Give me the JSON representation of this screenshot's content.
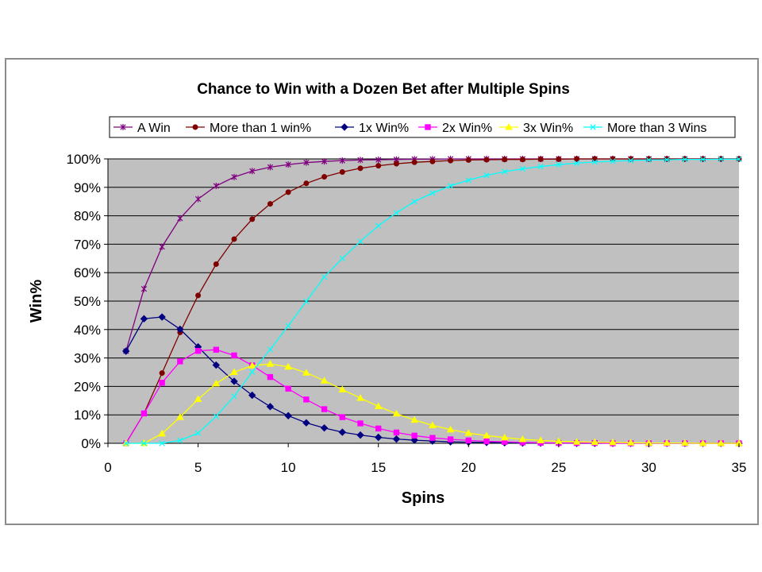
{
  "chart_data": {
    "type": "line",
    "title": "Chance to Win with a Dozen Bet after Multiple Spins",
    "xlabel": "Spins",
    "ylabel": "Win%",
    "xlim": [
      0,
      35
    ],
    "ylim": [
      0,
      100
    ],
    "x_ticks": [
      "0",
      "5",
      "10",
      "15",
      "20",
      "25",
      "30",
      "35"
    ],
    "y_ticks": [
      "0%",
      "10%",
      "20%",
      "30%",
      "40%",
      "50%",
      "60%",
      "70%",
      "80%",
      "90%",
      "100%"
    ],
    "grid": true,
    "legend_position": "top",
    "plot_background": "#c0c0c0",
    "x": [
      1,
      2,
      3,
      4,
      5,
      6,
      7,
      8,
      9,
      10,
      11,
      12,
      13,
      14,
      15,
      16,
      17,
      18,
      19,
      20,
      21,
      22,
      23,
      24,
      25,
      26,
      27,
      28,
      29,
      30,
      31,
      32,
      33,
      34,
      35
    ],
    "series": [
      {
        "name": "A Win",
        "color": "#800080",
        "marker": "star",
        "values": [
          32.4,
          54.3,
          69.1,
          79.1,
          85.9,
          90.5,
          93.6,
          95.7,
          97.1,
          98.0,
          98.7,
          99.1,
          99.4,
          99.6,
          99.7,
          99.8,
          99.9,
          99.9,
          100,
          100,
          100,
          100,
          100,
          100,
          100,
          100,
          100,
          100,
          100,
          100,
          100,
          100,
          100,
          100,
          100
        ]
      },
      {
        "name": "More than 1 win%",
        "color": "#800000",
        "marker": "circle",
        "values": [
          0,
          10.5,
          24.7,
          39.0,
          52.0,
          63.0,
          71.8,
          78.8,
          84.2,
          88.3,
          91.4,
          93.7,
          95.4,
          96.7,
          97.6,
          98.3,
          98.8,
          99.1,
          99.4,
          99.6,
          99.7,
          99.8,
          99.8,
          99.9,
          99.9,
          100,
          100,
          100,
          100,
          100,
          100,
          100,
          100,
          100,
          100
        ]
      },
      {
        "name": "1x Win%",
        "color": "#000080",
        "marker": "diamond",
        "values": [
          32.4,
          43.8,
          44.4,
          40.1,
          33.9,
          27.5,
          21.8,
          16.9,
          12.9,
          9.7,
          7.2,
          5.4,
          3.9,
          2.9,
          2.1,
          1.5,
          1.1,
          0.8,
          0.5,
          0.4,
          0.3,
          0.2,
          0.1,
          0.1,
          0.1,
          0,
          0,
          0,
          0,
          0,
          0,
          0,
          0,
          0,
          0
        ]
      },
      {
        "name": "2x Win%",
        "color": "#ff00ff",
        "marker": "square",
        "values": [
          0,
          10.5,
          21.3,
          28.8,
          32.5,
          32.9,
          30.9,
          27.4,
          23.3,
          19.2,
          15.4,
          12.0,
          9.2,
          7.0,
          5.2,
          3.8,
          2.7,
          1.9,
          1.4,
          1.0,
          0.7,
          0.5,
          0.3,
          0.2,
          0.1,
          0.1,
          0.1,
          0,
          0,
          0,
          0,
          0,
          0,
          0,
          0
        ]
      },
      {
        "name": "3x Win%",
        "color": "#ffff00",
        "marker": "triangle",
        "values": [
          0,
          0,
          3.4,
          9.2,
          15.5,
          21.0,
          25.0,
          27.3,
          27.9,
          26.9,
          24.8,
          22.0,
          18.9,
          15.9,
          13.0,
          10.4,
          8.2,
          6.3,
          4.8,
          3.6,
          2.7,
          2.0,
          1.4,
          1.0,
          0.7,
          0.5,
          0.4,
          0.3,
          0.2,
          0.1,
          0.1,
          0.1,
          0,
          0,
          0
        ]
      },
      {
        "name": "More than 3 Wins",
        "color": "#00ffff",
        "marker": "x",
        "values": [
          0,
          0,
          0,
          1.0,
          3.6,
          9.5,
          16.5,
          25.1,
          33.0,
          41.3,
          49.9,
          58.5,
          65.0,
          71.0,
          76.5,
          81.0,
          85.0,
          88.0,
          90.5,
          92.5,
          94.2,
          95.5,
          96.5,
          97.3,
          98.0,
          98.5,
          98.9,
          99.2,
          99.4,
          99.6,
          99.7,
          99.8,
          99.8,
          99.9,
          99.9
        ]
      }
    ]
  }
}
